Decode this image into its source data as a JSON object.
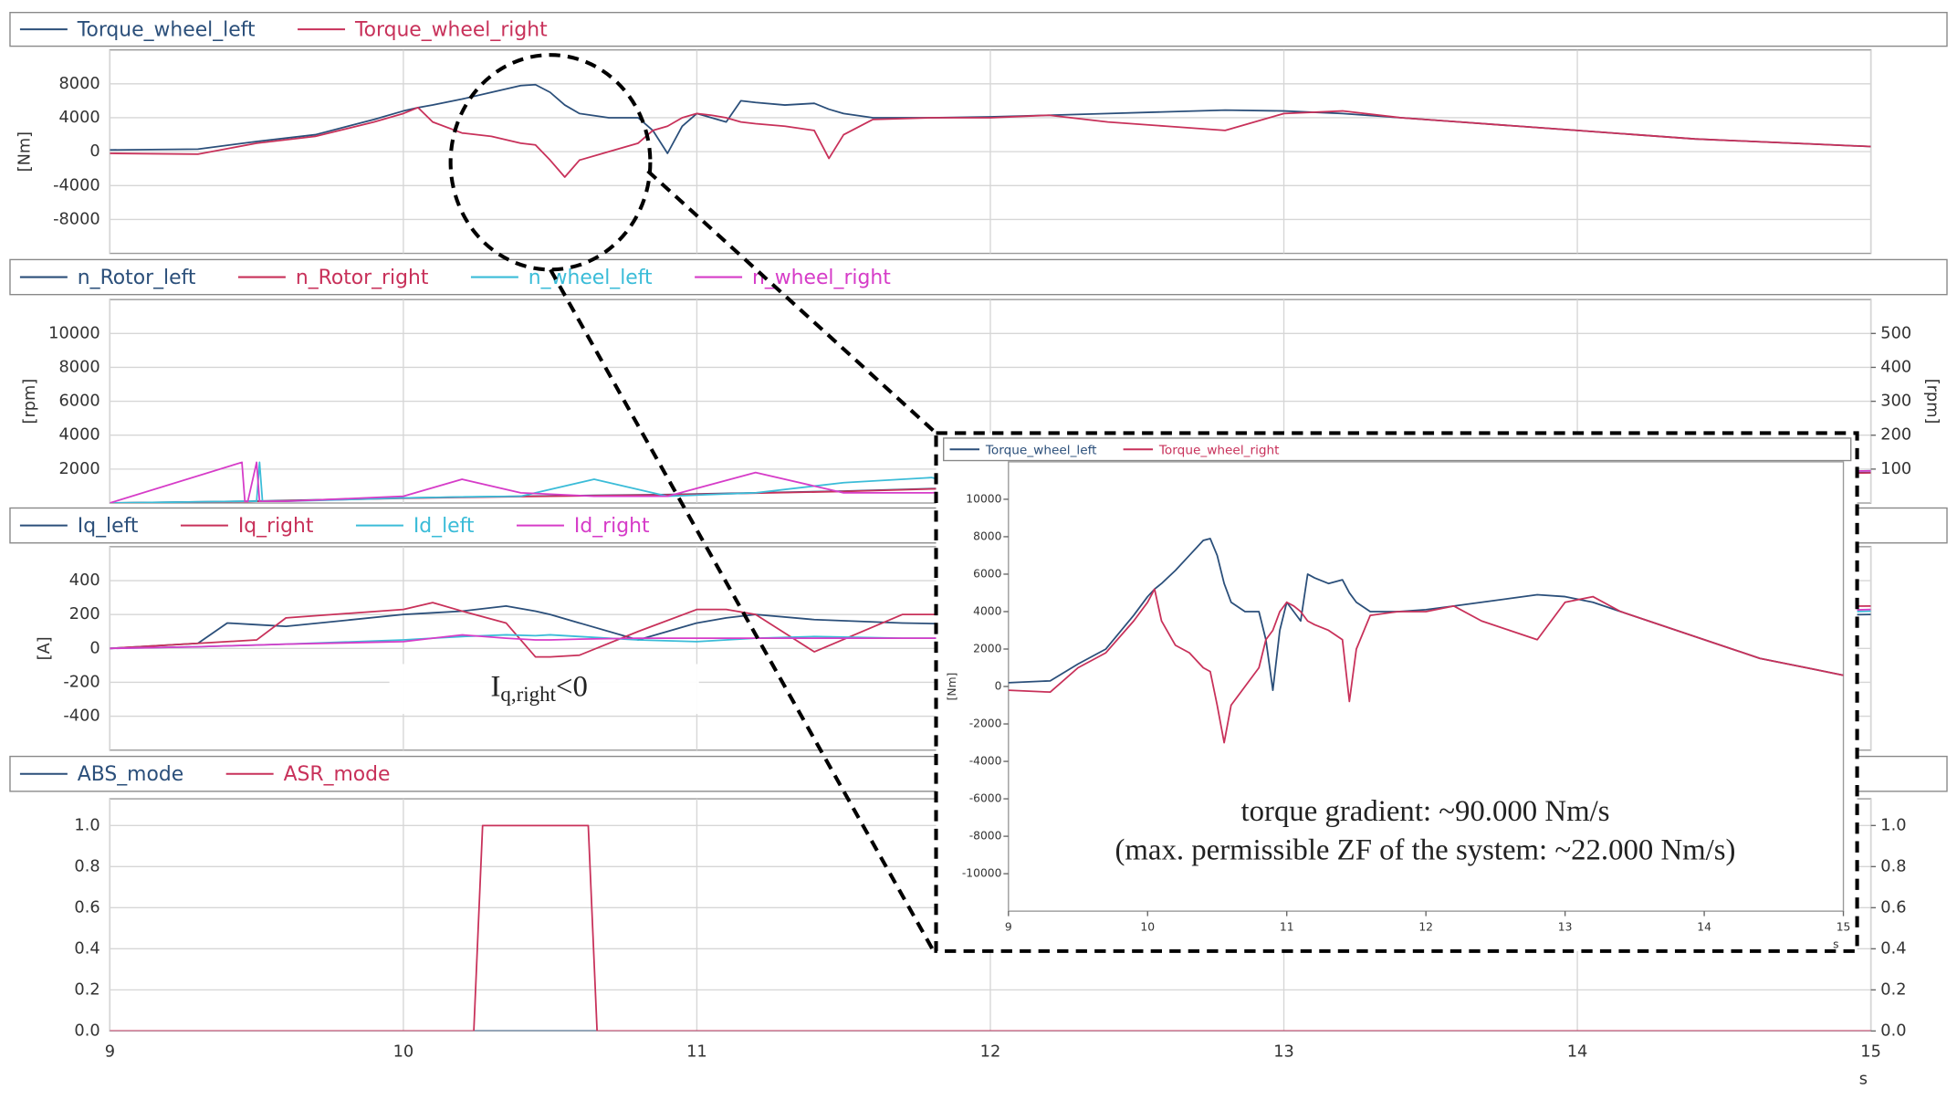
{
  "chart_data": [
    {
      "type": "line",
      "x": [
        9,
        9.3,
        9.5,
        9.7,
        9.9,
        10,
        10.05,
        10.1,
        10.2,
        10.3,
        10.4,
        10.45,
        10.5,
        10.55,
        10.6,
        10.7,
        10.8,
        10.85,
        10.9,
        10.95,
        11,
        11.05,
        11.1,
        11.15,
        11.2,
        11.3,
        11.4,
        11.45,
        11.5,
        11.6,
        11.8,
        12,
        12.2,
        12.4,
        12.6,
        12.8,
        13,
        13.2,
        13.4,
        13.6,
        13.8,
        14,
        14.2,
        14.4,
        14.6,
        14.8,
        15
      ],
      "series": [
        {
          "name": "Torque_wheel_left",
          "color": "#2b4f7a",
          "values": [
            200,
            300,
            1200,
            2000,
            3800,
            4800,
            5200,
            5500,
            6200,
            7000,
            7800,
            7900,
            7000,
            5500,
            4500,
            4000,
            4000,
            2500,
            -200,
            3000,
            4500,
            4000,
            3500,
            6000,
            5800,
            5500,
            5700,
            5000,
            4500,
            4000,
            4000,
            4100,
            4300,
            4500,
            4700,
            4900,
            4800,
            4500,
            4000,
            3500,
            3000,
            2500,
            2000,
            1500,
            1200,
            900,
            600
          ]
        },
        {
          "name": "Torque_wheel_right",
          "color": "#c8315a",
          "values": [
            -200,
            -300,
            1000,
            1800,
            3500,
            4500,
            5200,
            3500,
            2200,
            1800,
            1000,
            800,
            -1000,
            -3000,
            -1000,
            0,
            1000,
            2500,
            3000,
            4000,
            4500,
            4300,
            4000,
            3500,
            3300,
            3000,
            2500,
            -800,
            2000,
            3800,
            4000,
            4000,
            4300,
            3500,
            3000,
            2500,
            4500,
            4800,
            4000,
            3500,
            3000,
            2500,
            2000,
            1500,
            1200,
            900,
            600
          ]
        }
      ],
      "xlim": [
        9,
        15
      ],
      "xticks": [
        9,
        10,
        11,
        12,
        13,
        14,
        15
      ],
      "xtick_labels": false,
      "ylim": [
        -12000,
        12000
      ],
      "yticks": [
        -8000,
        -4000,
        0,
        4000,
        8000
      ],
      "y_label": "[Nm]",
      "grid": true
    },
    {
      "type": "line",
      "x": [
        9,
        9.45,
        9.46,
        9.47,
        9.5,
        9.51,
        9.52,
        9.6,
        10,
        10.2,
        10.4,
        10.65,
        10.9,
        11.2,
        11.5,
        11.8,
        12,
        13,
        14,
        15
      ],
      "series": [
        {
          "name": "n_Rotor_left",
          "color": "#2b4f7a",
          "values": [
            0,
            100,
            100,
            100,
            120,
            120,
            120,
            150,
            300,
            350,
            400,
            450,
            500,
            600,
            700,
            850,
            900,
            1200,
            1500,
            1800
          ]
        },
        {
          "name": "n_Rotor_right",
          "color": "#c8315a",
          "values": [
            0,
            80,
            80,
            80,
            100,
            100,
            100,
            130,
            280,
            330,
            380,
            430,
            480,
            580,
            680,
            830,
            880,
            1180,
            1480,
            1780
          ]
        },
        {
          "name": "n_wheel_left",
          "color": "#3bbcd8",
          "axis": "y2",
          "values": [
            0,
            5,
            5,
            5,
            5,
            120,
            5,
            5,
            15,
            18,
            20,
            70,
            20,
            30,
            60,
            75,
            30,
            60,
            80,
            95
          ]
        },
        {
          "name": "n_wheel_right",
          "color": "#d63cc8",
          "axis": "y2",
          "values": [
            0,
            120,
            5,
            5,
            120,
            5,
            5,
            5,
            20,
            70,
            30,
            20,
            20,
            90,
            30,
            30,
            40,
            60,
            80,
            95
          ]
        }
      ],
      "xlim": [
        9,
        15
      ],
      "xticks": [
        9,
        10,
        11,
        12,
        13,
        14,
        15
      ],
      "xtick_labels": false,
      "ylim": [
        0,
        12000
      ],
      "yticks": [
        2000,
        4000,
        6000,
        8000,
        10000
      ],
      "y_label": "[rpm]",
      "y2lim": [
        0,
        600
      ],
      "y2ticks": [
        100,
        200,
        300,
        400,
        500
      ],
      "y2_label": "[rpm]",
      "grid": true
    },
    {
      "type": "line",
      "x": [
        9,
        9.3,
        9.4,
        9.5,
        9.6,
        10,
        10.1,
        10.2,
        10.35,
        10.45,
        10.5,
        10.6,
        10.8,
        11,
        11.1,
        11.2,
        11.4,
        11.7,
        12,
        15
      ],
      "series": [
        {
          "name": "Iq_left",
          "color": "#2b4f7a",
          "values": [
            0,
            30,
            150,
            140,
            130,
            200,
            210,
            220,
            250,
            220,
            200,
            150,
            50,
            150,
            180,
            200,
            170,
            150,
            140,
            200
          ]
        },
        {
          "name": "Iq_right",
          "color": "#c8315a",
          "values": [
            0,
            30,
            40,
            50,
            180,
            230,
            270,
            220,
            150,
            -50,
            -50,
            -40,
            100,
            230,
            230,
            200,
            -20,
            200,
            200,
            250
          ]
        },
        {
          "name": "Id_left",
          "color": "#3bbcd8",
          "values": [
            0,
            10,
            15,
            20,
            25,
            50,
            60,
            70,
            80,
            75,
            80,
            70,
            50,
            40,
            50,
            60,
            70,
            60,
            60,
            220
          ]
        },
        {
          "name": "Id_right",
          "color": "#d63cc8",
          "values": [
            0,
            10,
            15,
            20,
            25,
            40,
            60,
            80,
            60,
            50,
            50,
            55,
            60,
            60,
            60,
            60,
            60,
            60,
            60,
            230
          ]
        }
      ],
      "xlim": [
        9,
        15
      ],
      "xticks": [
        9,
        10,
        11,
        12,
        13,
        14,
        15
      ],
      "xtick_labels": false,
      "ylim": [
        -600,
        600
      ],
      "yticks": [
        -400,
        -200,
        0,
        200,
        400
      ],
      "y_label": "[A]",
      "grid": true,
      "annotation": {
        "base": "I",
        "subscript": "q,right",
        "rest": "<0"
      }
    },
    {
      "type": "line",
      "x": [
        9,
        10.24,
        10.27,
        10.63,
        10.66,
        15
      ],
      "series": [
        {
          "name": "ABS_mode",
          "color": "#2b4f7a",
          "values": [
            0,
            0,
            0,
            0,
            0,
            0
          ]
        },
        {
          "name": "ASR_mode",
          "color": "#c8315a",
          "values": [
            0,
            0,
            1,
            1,
            0,
            0
          ]
        }
      ],
      "xlim": [
        9,
        15
      ],
      "xticks": [
        9,
        10,
        11,
        12,
        13,
        14,
        15
      ],
      "xtick_labels": true,
      "x_label": "s",
      "ylim": [
        0,
        1.13
      ],
      "yticks": [
        {
          "value": 0,
          "label": "0.0"
        },
        {
          "value": 0.2,
          "label": "0.2"
        },
        {
          "value": 0.4,
          "label": "0.4"
        },
        {
          "value": 0.6,
          "label": "0.6"
        },
        {
          "value": 0.8,
          "label": "0.8"
        },
        {
          "value": 1,
          "label": "1.0"
        }
      ],
      "y2lim": [
        0,
        1.13
      ],
      "y2ticks": [
        {
          "value": 0,
          "label": "0.0"
        },
        {
          "value": 0.2,
          "label": "0.2"
        },
        {
          "value": 0.4,
          "label": "0.4"
        },
        {
          "value": 0.6,
          "label": "0.6"
        },
        {
          "value": 0.8,
          "label": "0.8"
        },
        {
          "value": 1,
          "label": "1.0"
        }
      ],
      "grid": true
    },
    {
      "type": "line",
      "x": [
        9,
        9.3,
        9.5,
        9.7,
        9.9,
        10,
        10.05,
        10.1,
        10.2,
        10.3,
        10.4,
        10.45,
        10.5,
        10.55,
        10.6,
        10.7,
        10.8,
        10.85,
        10.9,
        10.95,
        11,
        11.05,
        11.1,
        11.15,
        11.2,
        11.3,
        11.4,
        11.45,
        11.5,
        11.6,
        11.8,
        12,
        12.2,
        12.4,
        12.6,
        12.8,
        13,
        13.2,
        13.4,
        13.6,
        13.8,
        14,
        14.2,
        14.4,
        14.6,
        14.8,
        15
      ],
      "series": [
        {
          "name": "Torque_wheel_left",
          "color": "#2b4f7a",
          "values": [
            200,
            300,
            1200,
            2000,
            3800,
            4800,
            5200,
            5500,
            6200,
            7000,
            7800,
            7900,
            7000,
            5500,
            4500,
            4000,
            4000,
            2500,
            -200,
            3000,
            4500,
            4000,
            3500,
            6000,
            5800,
            5500,
            5700,
            5000,
            4500,
            4000,
            4000,
            4100,
            4300,
            4500,
            4700,
            4900,
            4800,
            4500,
            4000,
            3500,
            3000,
            2500,
            2000,
            1500,
            1200,
            900,
            600
          ]
        },
        {
          "name": "Torque_wheel_right",
          "color": "#c8315a",
          "values": [
            -200,
            -300,
            1000,
            1800,
            3500,
            4500,
            5200,
            3500,
            2200,
            1800,
            1000,
            800,
            -1000,
            -3000,
            -1000,
            0,
            1000,
            2500,
            3000,
            4000,
            4500,
            4300,
            4000,
            3500,
            3300,
            3000,
            2500,
            -800,
            2000,
            3800,
            4000,
            4000,
            4300,
            3500,
            3000,
            2500,
            4500,
            4800,
            4000,
            3500,
            3000,
            2500,
            2000,
            1500,
            1200,
            900,
            600
          ]
        }
      ],
      "xlim": [
        9,
        15
      ],
      "xticks": [
        9,
        10,
        11,
        12,
        13,
        14,
        15
      ],
      "xtick_labels": true,
      "x_label": "s",
      "ylim": [
        -12000,
        12000
      ],
      "yticks": [
        -10000,
        -8000,
        -6000,
        -4000,
        -2000,
        0,
        2000,
        4000,
        6000,
        8000,
        10000
      ],
      "y_label": "[Nm]",
      "grid": false,
      "annotation": [
        "torque gradient: ~90.000 Nm/s",
        "(max. permissible ZF of the system: ~22.000 Nm/s)"
      ]
    }
  ]
}
